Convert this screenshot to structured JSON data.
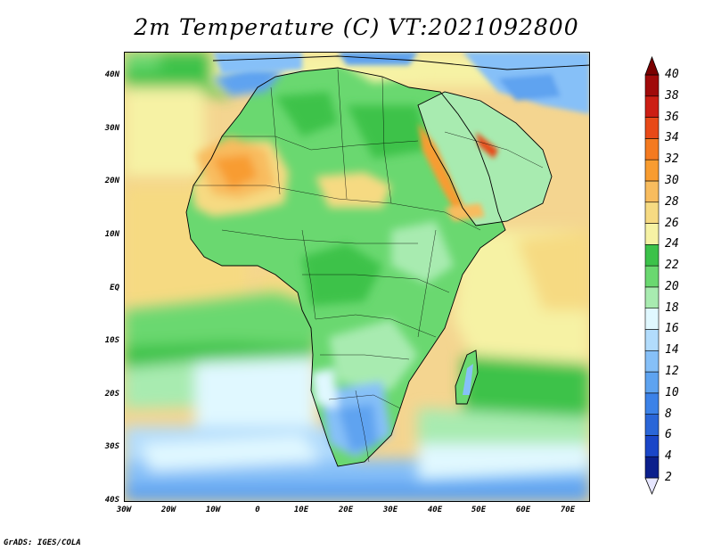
{
  "title": "2m Temperature (C) VT:2021092800",
  "credit": "GrADS: IGES/COLA",
  "chart_data": {
    "type": "heatmap",
    "title": "2m Temperature (C) VT:2021092800",
    "lon_range": [
      -30,
      75
    ],
    "lat_range": [
      -40,
      45
    ],
    "lon_ticks": [
      "30W",
      "20W",
      "10W",
      "0",
      "10E",
      "20E",
      "30E",
      "40E",
      "50E",
      "60E",
      "70E"
    ],
    "lat_ticks": [
      "40S",
      "30S",
      "20S",
      "10S",
      "EQ",
      "10N",
      "20N",
      "30N",
      "40N"
    ],
    "colorbar": {
      "levels": [
        2,
        4,
        6,
        8,
        10,
        12,
        14,
        16,
        18,
        20,
        22,
        24,
        26,
        28,
        30,
        32,
        34,
        36,
        38,
        40
      ],
      "labels": [
        "2",
        "4",
        "6",
        "8",
        "10",
        "12",
        "14",
        "16",
        "18",
        "20",
        "22",
        "24",
        "26",
        "28",
        "30",
        "32",
        "34",
        "36",
        "38",
        "40"
      ],
      "colors": [
        "#e6e6ff",
        "#0b1f8c",
        "#1a46c8",
        "#2a66d8",
        "#3c82e8",
        "#5ea3f0",
        "#86c0f8",
        "#b2dcfc",
        "#e0f8ff",
        "#a8ebb0",
        "#6ad870",
        "#3cc24a",
        "#f6f2a4",
        "#f6da82",
        "#f8bc5e",
        "#f89c30",
        "#f47a20",
        "#e84a18",
        "#cc1e14",
        "#a00a0a",
        "#7a0000"
      ]
    }
  }
}
